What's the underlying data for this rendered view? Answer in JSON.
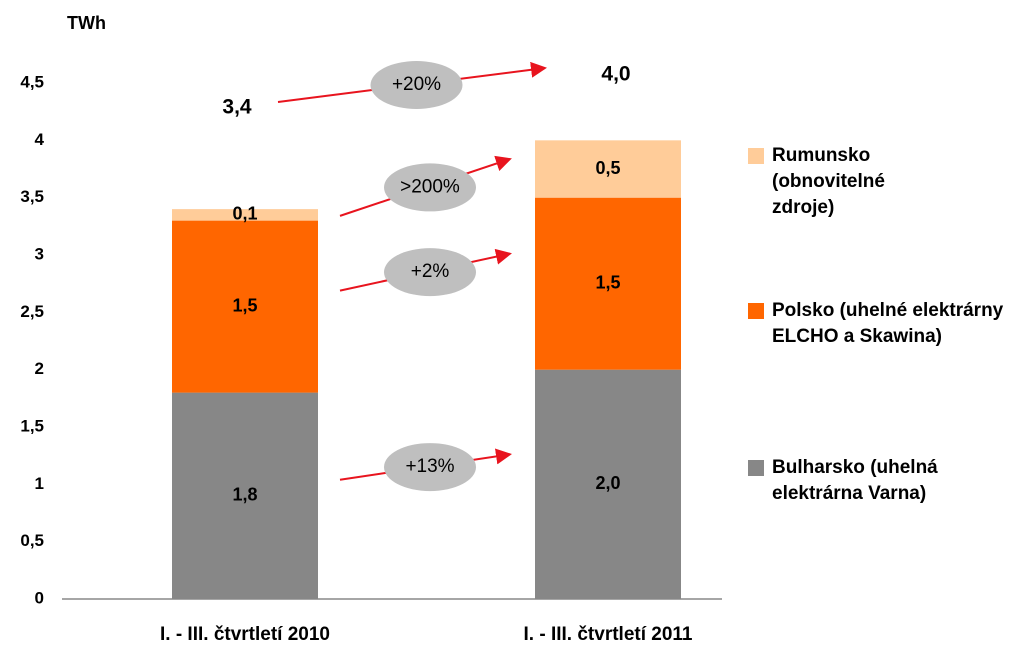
{
  "chart_data": {
    "type": "stacked_bar",
    "y_label": "TWh",
    "categories": [
      "I. - III. čtvrtletí 2010",
      "I. - III. čtvrtletí 2011"
    ],
    "series": [
      {
        "name": "Bulharsko (uhelná elektrárna Varna)",
        "color": "#878787",
        "values": [
          1.8,
          2.0
        ],
        "value_labels": [
          "1,8",
          "2,0"
        ],
        "change": "+13%"
      },
      {
        "name": "Polsko (uhelné elektrárny ELCHO a Skawina)",
        "color": "#ff6600",
        "values": [
          1.5,
          1.5
        ],
        "value_labels": [
          "1,5",
          "1,5"
        ],
        "change": "+2%"
      },
      {
        "name": "Rumunsko (obnovitelné zdroje)",
        "color": "#ffcc99",
        "values": [
          0.1,
          0.5
        ],
        "value_labels": [
          "0,1",
          "0,5"
        ],
        "change": ">200%"
      }
    ],
    "total_labels": [
      "3,4",
      "4,0"
    ],
    "total_change": "+20%",
    "ylim": [
      0,
      4.5
    ],
    "yticks": [
      0,
      {
        "value": 0.5,
        "label": "0,5"
      },
      1,
      {
        "value": 1.5,
        "label": "1,5"
      },
      2,
      {
        "value": 2.5,
        "label": "2,5"
      },
      3,
      {
        "value": 3.5,
        "label": "3,5"
      },
      4,
      {
        "value": 4.5,
        "label": "4,5"
      }
    ],
    "legend": "right"
  }
}
